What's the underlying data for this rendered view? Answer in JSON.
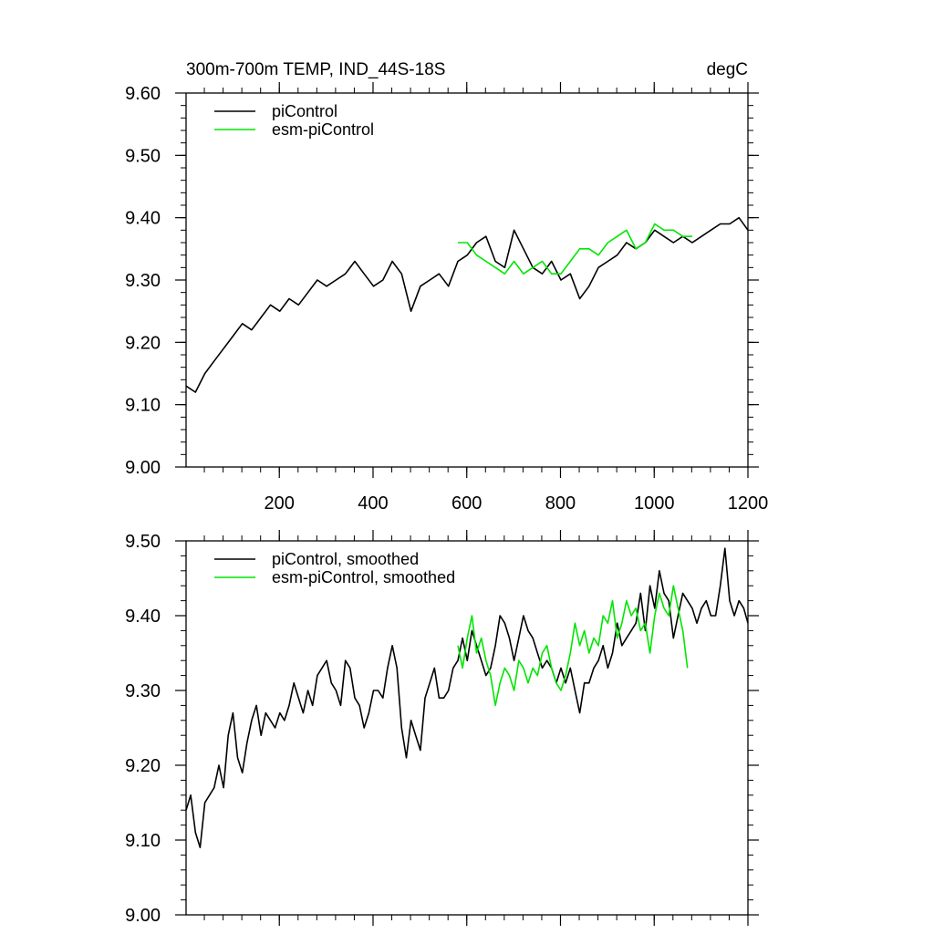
{
  "colors": {
    "picontrol": "#000000",
    "esm_picontrol": "#00e600",
    "frame": "#000000",
    "background": "#ffffff"
  },
  "chart_data": [
    {
      "type": "line",
      "title": "300m-700m TEMP, IND_44S-18S",
      "units": "degC",
      "xlabel": "",
      "ylabel": "",
      "xlim": [
        1,
        1200
      ],
      "ylim": [
        9.0,
        9.6
      ],
      "x_ticks": [
        200,
        400,
        600,
        800,
        1000,
        1200
      ],
      "x_tick_labels": [
        "200",
        "400",
        "600",
        "800",
        "1000",
        "1200"
      ],
      "y_ticks": [
        9.0,
        9.1,
        9.2,
        9.3,
        9.4,
        9.5,
        9.6
      ],
      "y_tick_labels": [
        "9.00",
        "9.10",
        "9.20",
        "9.30",
        "9.40",
        "9.50",
        "9.60"
      ],
      "grid": false,
      "legend_position": "top-left",
      "series": [
        {
          "name": "piControl",
          "color_key": "picontrol",
          "x_start": 1,
          "x_step": 20,
          "values": [
            9.13,
            9.12,
            9.15,
            9.17,
            9.19,
            9.21,
            9.23,
            9.22,
            9.24,
            9.26,
            9.25,
            9.27,
            9.26,
            9.28,
            9.3,
            9.29,
            9.3,
            9.31,
            9.33,
            9.31,
            9.29,
            9.3,
            9.33,
            9.31,
            9.25,
            9.29,
            9.3,
            9.31,
            9.29,
            9.33,
            9.34,
            9.36,
            9.37,
            9.33,
            9.32,
            9.38,
            9.35,
            9.32,
            9.31,
            9.33,
            9.3,
            9.31,
            9.27,
            9.29,
            9.32,
            9.33,
            9.34,
            9.36,
            9.35,
            9.36,
            9.38,
            9.37,
            9.36,
            9.37,
            9.36,
            9.37,
            9.38,
            9.39,
            9.39,
            9.4,
            9.38
          ]
        },
        {
          "name": "esm-piControl",
          "color_key": "esm_picontrol",
          "x_start": 581,
          "x_step": 20,
          "values": [
            9.36,
            9.36,
            9.34,
            9.33,
            9.32,
            9.31,
            9.33,
            9.31,
            9.32,
            9.33,
            9.31,
            9.31,
            9.33,
            9.35,
            9.35,
            9.34,
            9.36,
            9.37,
            9.38,
            9.35,
            9.36,
            9.39,
            9.38,
            9.38,
            9.37,
            9.37
          ]
        }
      ]
    },
    {
      "type": "line",
      "title": "",
      "xlabel": "",
      "ylabel": "",
      "xlim": [
        1,
        1200
      ],
      "ylim": [
        9.0,
        9.5
      ],
      "x_ticks": [
        200,
        400,
        600,
        800,
        1000,
        1200
      ],
      "y_ticks": [
        9.0,
        9.1,
        9.2,
        9.3,
        9.4,
        9.5
      ],
      "y_tick_labels": [
        "9.00",
        "9.10",
        "9.20",
        "9.30",
        "9.40",
        "9.50"
      ],
      "grid": false,
      "legend_position": "top-left",
      "series": [
        {
          "name": "piControl, smoothed",
          "color_key": "picontrol",
          "x_start": 1,
          "x_step": 10,
          "values": [
            9.14,
            9.16,
            9.11,
            9.09,
            9.15,
            9.16,
            9.17,
            9.2,
            9.17,
            9.24,
            9.27,
            9.21,
            9.19,
            9.23,
            9.26,
            9.28,
            9.24,
            9.27,
            9.26,
            9.25,
            9.27,
            9.26,
            9.28,
            9.31,
            9.29,
            9.27,
            9.3,
            9.28,
            9.32,
            9.33,
            9.34,
            9.31,
            9.3,
            9.28,
            9.34,
            9.33,
            9.29,
            9.28,
            9.25,
            9.27,
            9.3,
            9.3,
            9.29,
            9.33,
            9.36,
            9.33,
            9.25,
            9.21,
            9.26,
            9.24,
            9.22,
            9.29,
            9.31,
            9.33,
            9.29,
            9.29,
            9.3,
            9.33,
            9.34,
            9.37,
            9.34,
            9.38,
            9.36,
            9.34,
            9.32,
            9.33,
            9.36,
            9.4,
            9.39,
            9.37,
            9.34,
            9.37,
            9.4,
            9.38,
            9.37,
            9.35,
            9.33,
            9.34,
            9.33,
            9.31,
            9.33,
            9.31,
            9.33,
            9.3,
            9.27,
            9.31,
            9.31,
            9.33,
            9.34,
            9.36,
            9.33,
            9.35,
            9.39,
            9.36,
            9.37,
            9.38,
            9.39,
            9.43,
            9.38,
            9.44,
            9.41,
            9.46,
            9.43,
            9.42,
            9.37,
            9.4,
            9.43,
            9.42,
            9.41,
            9.39,
            9.41,
            9.42,
            9.4,
            9.4,
            9.44,
            9.49,
            9.42,
            9.4,
            9.42,
            9.41,
            9.39
          ]
        },
        {
          "name": "esm-piControl, smoothed",
          "color_key": "esm_picontrol",
          "x_start": 581,
          "x_step": 10,
          "values": [
            9.36,
            9.33,
            9.37,
            9.4,
            9.35,
            9.37,
            9.34,
            9.32,
            9.28,
            9.31,
            9.33,
            9.32,
            9.3,
            9.34,
            9.33,
            9.31,
            9.33,
            9.32,
            9.35,
            9.36,
            9.33,
            9.31,
            9.3,
            9.32,
            9.35,
            9.39,
            9.36,
            9.38,
            9.35,
            9.37,
            9.36,
            9.4,
            9.39,
            9.42,
            9.37,
            9.39,
            9.42,
            9.4,
            9.41,
            9.38,
            9.39,
            9.35,
            9.4,
            9.43,
            9.41,
            9.4,
            9.44,
            9.41,
            9.38,
            9.33
          ]
        }
      ]
    }
  ]
}
